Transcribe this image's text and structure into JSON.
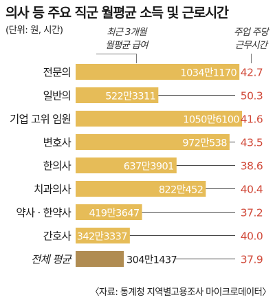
{
  "title": "의사 등 주요 직군 월평균 소득 및 근로시간",
  "unit_note": "(단위: 원, 시간)",
  "header_salary": [
    "최근 3개월",
    "월평균 급여"
  ],
  "header_hours": [
    "주업 주당",
    "근무시간"
  ],
  "source": "〈자료: 통계청 지역별고용조사 마이크로데이터〉",
  "colors": {
    "bar": "#e6bc58",
    "bar_average": "#b08c52",
    "hours_text": "#d14a3a",
    "value_on_bar": "#ffffff",
    "value_off_bar": "#222222"
  },
  "chart_data": {
    "type": "bar",
    "orientation": "horizontal",
    "categories": [
      "전문의",
      "일반의",
      "기업 고위 임원",
      "변호사",
      "한의사",
      "치과의사",
      "약사 · 한약사",
      "간호사",
      "전체 평균"
    ],
    "series": [
      {
        "name": "최근 3개월 월평균 급여",
        "values": [
          10341170,
          5223311,
          10506100,
          9720538,
          6373901,
          8220452,
          4193647,
          3423337,
          3041437
        ],
        "labels": [
          "1034만1170",
          "522만3311",
          "1050만6100",
          "972만538",
          "637만3901",
          "822만452",
          "419만3647",
          "342만3337",
          "304만1437"
        ]
      },
      {
        "name": "주업 주당 근무시간",
        "values": [
          42.7,
          50.3,
          41.6,
          43.5,
          38.6,
          40.4,
          37.2,
          40.0,
          37.9
        ],
        "labels": [
          "42.7",
          "50.3",
          "41.6",
          "43.5",
          "38.6",
          "40.4",
          "37.2",
          "40.0",
          "37.9"
        ]
      }
    ],
    "xlim": [
      0,
      10506100
    ],
    "grid": false,
    "legend": "none"
  }
}
